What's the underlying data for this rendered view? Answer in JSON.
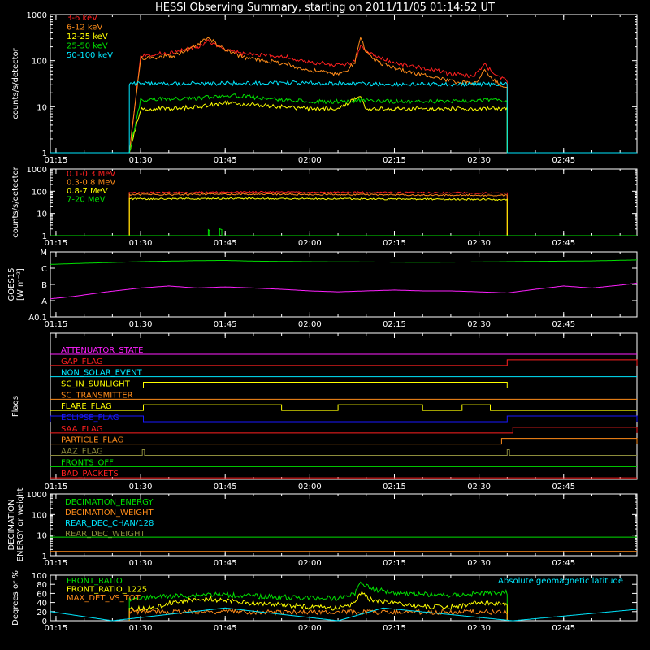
{
  "title": "HESSI Observing Summary, starting on 2011/11/05 01:14:52 UT",
  "time_ticks": [
    "01:15",
    "01:30",
    "01:45",
    "02:00",
    "02:15",
    "02:30",
    "02:45"
  ],
  "colors": {
    "red": "#ff2020",
    "orange": "#ff8c1a",
    "yellow": "#ffff00",
    "green": "#00e000",
    "cyan": "#00e8ff",
    "magenta": "#ff20ff",
    "blue": "#1818ff",
    "olive": "#8c8c3c"
  },
  "chart_data": [
    {
      "type": "line",
      "ylabel": "counts/s/detector",
      "yscale": "log",
      "ylim": [
        1,
        1000
      ],
      "yticks": [
        "1",
        "10",
        "100",
        "1000"
      ],
      "xlim": [
        "01:15",
        "02:58"
      ],
      "series": [
        {
          "name": "3-6 keV",
          "color": "red",
          "x": [
            "01:28",
            "01:30",
            "01:33",
            "01:36",
            "01:40",
            "01:42",
            "01:45",
            "01:48",
            "01:52",
            "01:56",
            "01:58",
            "02:00",
            "02:02",
            "02:04",
            "02:06",
            "02:08",
            "02:09",
            "02:10",
            "02:12",
            "02:15",
            "02:18",
            "02:20",
            "02:22",
            "02:25",
            "02:27",
            "02:29",
            "02:31",
            "02:33",
            "02:35",
            "02:35"
          ],
          "values": [
            1,
            130,
            140,
            150,
            200,
            260,
            180,
            140,
            130,
            120,
            100,
            90,
            90,
            80,
            80,
            100,
            200,
            160,
            120,
            90,
            75,
            70,
            65,
            50,
            50,
            45,
            80,
            50,
            35,
            1
          ]
        },
        {
          "name": "6-12 keV",
          "color": "orange",
          "x": [
            "01:28",
            "01:30",
            "01:33",
            "01:36",
            "01:40",
            "01:42",
            "01:45",
            "01:48",
            "01:52",
            "01:56",
            "01:58",
            "02:00",
            "02:02",
            "02:04",
            "02:06",
            "02:08",
            "02:09",
            "02:10",
            "02:12",
            "02:15",
            "02:18",
            "02:20",
            "02:22",
            "02:25",
            "02:27",
            "02:29",
            "02:31",
            "02:33",
            "02:35",
            "02:35"
          ],
          "values": [
            1,
            110,
            120,
            130,
            220,
            310,
            170,
            120,
            100,
            85,
            70,
            60,
            60,
            50,
            55,
            90,
            350,
            150,
            95,
            70,
            55,
            50,
            45,
            35,
            35,
            30,
            60,
            35,
            25,
            1
          ]
        },
        {
          "name": "12-25 keV",
          "color": "yellow",
          "x": [
            "01:28",
            "01:30",
            "01:35",
            "01:40",
            "01:45",
            "01:50",
            "01:55",
            "02:00",
            "02:05",
            "02:09",
            "02:10",
            "02:15",
            "02:20",
            "02:25",
            "02:30",
            "02:35",
            "02:35"
          ],
          "values": [
            1,
            9,
            9,
            10,
            12,
            11,
            10,
            9,
            9,
            18,
            9,
            9,
            9,
            9,
            9,
            9,
            1
          ]
        },
        {
          "name": "25-50 keV",
          "color": "green",
          "x": [
            "01:28",
            "01:30",
            "01:35",
            "01:40",
            "01:45",
            "01:50",
            "01:55",
            "02:00",
            "02:05",
            "02:10",
            "02:15",
            "02:20",
            "02:25",
            "02:30",
            "02:35",
            "02:35"
          ],
          "values": [
            1,
            14,
            15,
            15,
            18,
            16,
            14,
            13,
            13,
            14,
            13,
            13,
            13,
            14,
            14,
            1
          ]
        },
        {
          "name": "50-100 keV",
          "color": "cyan",
          "x": [
            "01:14",
            "01:28",
            "01:28",
            "01:35",
            "01:45",
            "01:55",
            "02:05",
            "02:15",
            "02:25",
            "02:35",
            "02:35",
            "02:58"
          ],
          "values": [
            1,
            1,
            32,
            32,
            32,
            33,
            32,
            31,
            31,
            31,
            1,
            1
          ]
        }
      ]
    },
    {
      "type": "line",
      "ylabel": "counts/s/detector",
      "yscale": "log",
      "ylim": [
        1,
        1000
      ],
      "yticks": [
        "1",
        "10",
        "100",
        "1000"
      ],
      "xlim": [
        "01:15",
        "02:58"
      ],
      "series": [
        {
          "name": "0.1-0.3 MeV",
          "color": "red",
          "x": [
            "01:28",
            "01:28",
            "01:40",
            "01:50",
            "02:00",
            "02:10",
            "02:20",
            "02:30",
            "02:35",
            "02:35"
          ],
          "values": [
            1,
            85,
            88,
            92,
            90,
            88,
            86,
            84,
            80,
            1
          ]
        },
        {
          "name": "0.3-0.8 MeV",
          "color": "orange",
          "x": [
            "01:28",
            "01:28",
            "01:40",
            "01:50",
            "02:00",
            "02:10",
            "02:20",
            "02:30",
            "02:35",
            "02:35"
          ],
          "values": [
            1,
            70,
            72,
            74,
            72,
            70,
            68,
            66,
            64,
            1
          ]
        },
        {
          "name": "0.8-7 MeV",
          "color": "yellow",
          "x": [
            "01:28",
            "01:28",
            "01:40",
            "01:50",
            "02:00",
            "02:10",
            "02:20",
            "02:30",
            "02:35",
            "02:35"
          ],
          "values": [
            1,
            45,
            46,
            47,
            46,
            45,
            44,
            43,
            42,
            1
          ]
        },
        {
          "name": "7-20 MeV",
          "color": "green",
          "x": [
            "01:14",
            "01:42",
            "01:42",
            "01:42.2",
            "01:42.2",
            "01:44",
            "01:44",
            "01:44.4",
            "01:44.4",
            "02:58"
          ],
          "values": [
            1,
            1,
            1.8,
            1.8,
            1,
            1,
            2,
            2,
            1,
            1
          ]
        }
      ]
    },
    {
      "type": "line",
      "ylabel": "GOES15",
      "yunit": "[W m⁻²]",
      "yscale": "log",
      "yticks": [
        "A0.1",
        "A",
        "B",
        "C",
        "M"
      ],
      "ytick_values": [
        1e-09,
        1e-08,
        1e-07,
        1e-06,
        1e-05
      ],
      "xlim": [
        "01:15",
        "02:58"
      ],
      "series": [
        {
          "name": "long",
          "color": "green",
          "x": [
            "01:14",
            "01:20",
            "01:30",
            "01:40",
            "01:45",
            "01:50",
            "02:00",
            "02:10",
            "02:20",
            "02:30",
            "02:40",
            "02:50",
            "02:58"
          ],
          "values": [
            1.7e-06,
            2e-06,
            2.5e-06,
            2.9e-06,
            3e-06,
            2.7e-06,
            2.5e-06,
            2.4e-06,
            2.3e-06,
            2.4e-06,
            2.6e-06,
            2.8e-06,
            3.2e-06
          ]
        },
        {
          "name": "short",
          "color": "magenta",
          "x": [
            "01:14",
            "01:18",
            "01:24",
            "01:30",
            "01:35",
            "01:40",
            "01:45",
            "01:50",
            "01:55",
            "02:00",
            "02:05",
            "02:10",
            "02:15",
            "02:20",
            "02:25",
            "02:30",
            "02:35",
            "02:40",
            "02:45",
            "02:50",
            "02:55",
            "02:58"
          ],
          "values": [
            1.3e-08,
            1.8e-08,
            3.5e-08,
            6e-08,
            8e-08,
            6e-08,
            7e-08,
            6e-08,
            5e-08,
            4e-08,
            3.5e-08,
            4e-08,
            4.5e-08,
            4e-08,
            4e-08,
            3.5e-08,
            3e-08,
            5e-08,
            8e-08,
            6e-08,
            9e-08,
            1.2e-07
          ]
        }
      ]
    },
    {
      "type": "step",
      "ylabel": "Flags",
      "xlim": [
        "01:15",
        "02:58"
      ],
      "flags": [
        {
          "name": "ATTENUATOR_STATE",
          "color": "magenta",
          "on": []
        },
        {
          "name": "GAP_FLAG",
          "color": "red",
          "on": [
            [
              "02:35",
              "02:58"
            ]
          ]
        },
        {
          "name": "NON_SOLAR_EVENT",
          "color": "cyan",
          "on": []
        },
        {
          "name": "SC_IN_SUNLIGHT",
          "color": "yellow",
          "on": [
            [
              "01:30.5",
              "02:35"
            ]
          ]
        },
        {
          "name": "SC_TRANSMITTER",
          "color": "orange",
          "on": []
        },
        {
          "name": "FLARE_FLAG",
          "color": "yellow",
          "on": [
            [
              "01:30.5",
              "01:55"
            ],
            [
              "02:05",
              "02:20"
            ],
            [
              "02:27",
              "02:32"
            ]
          ]
        },
        {
          "name": "ECLIPSE_FLAG",
          "color": "blue",
          "on": [
            [
              "01:14",
              "01:30.5"
            ],
            [
              "02:35",
              "02:58"
            ]
          ]
        },
        {
          "name": "SAA_FLAG",
          "color": "red",
          "on": [
            [
              "02:36",
              "02:58"
            ]
          ]
        },
        {
          "name": "PARTICLE_FLAG",
          "color": "orange",
          "on": [
            [
              "02:34",
              "02:58"
            ]
          ]
        },
        {
          "name": "AAZ_FLAG",
          "color": "olive",
          "on": [
            [
              "01:30.3",
              "01:30.7"
            ],
            [
              "02:35",
              "02:35.4"
            ]
          ]
        },
        {
          "name": "FRONTS_OFF",
          "color": "green",
          "on": []
        },
        {
          "name": "BAD_PACKETS",
          "color": "red",
          "on": []
        }
      ]
    },
    {
      "type": "line",
      "ylabel": "DECIMATION ENERGY or weight",
      "yscale": "log",
      "ylim": [
        1,
        1000
      ],
      "yticks": [
        "1",
        "10",
        "100",
        "1000"
      ],
      "xlim": [
        "01:15",
        "02:58"
      ],
      "series": [
        {
          "name": "DECIMATION_ENERGY",
          "color": "green",
          "x": [
            "01:14",
            "02:58"
          ],
          "values": [
            8,
            8
          ]
        },
        {
          "name": "DECIMATION_WEIGHT",
          "color": "orange",
          "x": [
            "01:14",
            "02:58"
          ],
          "values": [
            1.6,
            1.6
          ]
        },
        {
          "name": "REAR_DEC_CHAN/128",
          "color": "cyan",
          "x": [],
          "values": []
        },
        {
          "name": "REAR_DEC_WEIGHT",
          "color": "olive",
          "x": [],
          "values": []
        }
      ]
    },
    {
      "type": "line",
      "ylabel": "Degrees or %",
      "ylim": [
        0,
        100
      ],
      "yticks": [
        "0",
        "20",
        "40",
        "60",
        "80",
        "100"
      ],
      "xlim": [
        "01:15",
        "02:58"
      ],
      "series": [
        {
          "name": "FRONT_RATIO",
          "color": "green",
          "x": [
            "01:28",
            "01:28",
            "01:32",
            "01:38",
            "01:42",
            "01:48",
            "01:55",
            "02:00",
            "02:05",
            "02:08",
            "02:09",
            "02:11",
            "02:15",
            "02:20",
            "02:25",
            "02:30",
            "02:35",
            "02:35"
          ],
          "values": [
            0,
            48,
            52,
            55,
            58,
            55,
            52,
            50,
            50,
            60,
            85,
            70,
            62,
            58,
            55,
            60,
            62,
            0
          ]
        },
        {
          "name": "FRONT_RATIO_1225",
          "color": "yellow",
          "x": [
            "01:28",
            "01:28",
            "01:32",
            "01:36",
            "01:42",
            "01:48",
            "01:55",
            "02:00",
            "02:05",
            "02:08",
            "02:09",
            "02:11",
            "02:15",
            "02:20",
            "02:25",
            "02:30",
            "02:35",
            "02:35"
          ],
          "values": [
            0,
            25,
            28,
            42,
            48,
            40,
            35,
            30,
            28,
            38,
            60,
            45,
            40,
            32,
            30,
            40,
            35,
            0
          ]
        },
        {
          "name": "MAX_DET_VS_TOT",
          "color": "orange",
          "x": [
            "01:28",
            "01:28",
            "01:35",
            "01:45",
            "01:55",
            "02:05",
            "02:15",
            "02:25",
            "02:35",
            "02:35"
          ],
          "values": [
            0,
            20,
            20,
            20,
            19,
            19,
            19,
            19,
            19,
            0
          ]
        },
        {
          "name": "Absolute geomagnetic latitude",
          "color": "cyan",
          "x": [
            "01:14",
            "01:25",
            "01:45",
            "02:05",
            "02:13",
            "02:36",
            "02:58"
          ],
          "values": [
            20,
            0,
            28,
            0,
            28,
            0,
            25
          ]
        }
      ]
    }
  ]
}
